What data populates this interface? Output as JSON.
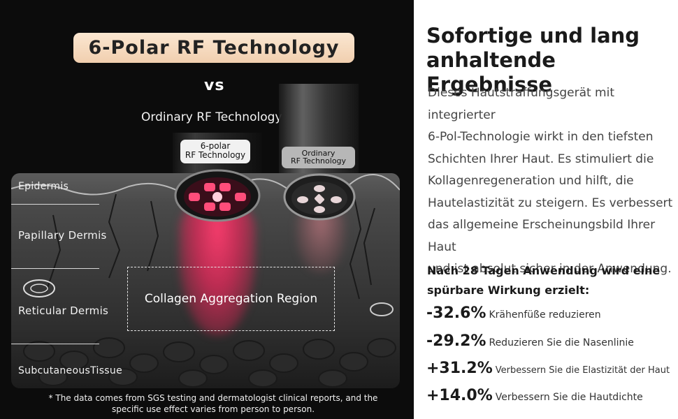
{
  "left_panel": {
    "title": "6-Polar RF Technology",
    "vs": "vs",
    "comparison": "Ordinary RF Technology",
    "device_6polar_label_line1": "6-polar",
    "device_6polar_label_line2": "RF Technology",
    "device_ordinary_label_line1": "Ordinary",
    "device_ordinary_label_line2": "RF Technology",
    "layers": [
      "Epidermis",
      "Papillary Dermis",
      "Reticular Dermis",
      "SubcutaneousTissue"
    ],
    "collagen_region": "Collagen Aggregation Region",
    "footnote_line1": "* The data comes from SGS testing and dermatologist clinical reports, and the",
    "footnote_line2": "specific use effect varies from person to person."
  },
  "right_panel": {
    "title_line1": "Sofortige und lang",
    "title_line2": "anhaltende Ergebnisse",
    "body_lines": [
      "Dieses Hautstraffungsgerät mit integrierter",
      "6-Pol-Technologie wirkt in den tiefsten",
      "Schichten Ihrer Haut. Es stimuliert die",
      "Kollagenregeneration und hilft, die",
      "Hautelastizität zu steigern. Es verbessert",
      "das allgemeine Erscheinungsbild Ihrer Haut",
      "und ist absolut sicher in der Anwendung."
    ],
    "subtitle_line1": "Nach 28 Tagen Anwendung wird eine",
    "subtitle_line2": "spürbare Wirkung erzielt:",
    "stats": [
      {
        "value": "-32.6%",
        "label": "Krähenfüße reduzieren"
      },
      {
        "value": "-29.2%",
        "label": "Reduzieren Sie die Nasenlinie"
      },
      {
        "value": "+31.2%",
        "label": "Verbessern Sie die Elastizität der Haut"
      },
      {
        "value": "+14.0%",
        "label": "Verbessern Sie die Hautdichte"
      }
    ]
  },
  "colors": {
    "panel_dark": "#0c0c0c",
    "title_pill": "#f5dcc1",
    "glow_red": "#ff2d6a",
    "text_dark": "#1a1a1a"
  }
}
